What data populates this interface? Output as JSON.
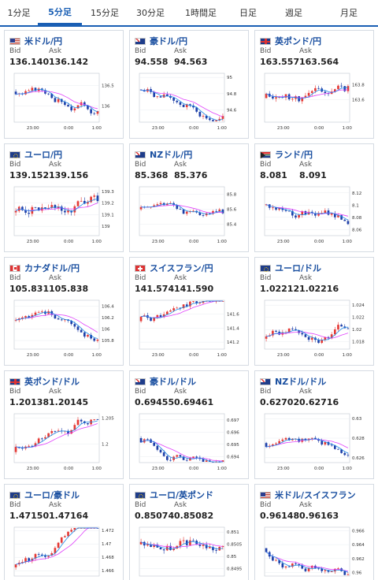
{
  "tabs": [
    "1分足",
    "5分足",
    "15分足",
    "30分足",
    "1時間足",
    "日足",
    "週足",
    "月足"
  ],
  "active_tab": 1,
  "labels": {
    "bid": "Bid",
    "ask": "Ask"
  },
  "colors": {
    "up": "#e53935",
    "down": "#1e3fa8",
    "ma_long": "#e040fb",
    "ma_short": "#1e88e5",
    "accent": "#1a5fb4"
  },
  "cards": [
    {
      "title": "米ドル/円",
      "flag": "us",
      "bid": "136.140",
      "ask": "136.142",
      "chart_data": {
        "type": "candlestick",
        "y_ticks": [
          "136.5",
          "136"
        ],
        "x_ticks": [
          "23:00",
          "0:00",
          "1:00"
        ],
        "ylim": [
          135.6,
          136.8
        ],
        "base": 136.35,
        "trend": -0.25,
        "noise": 0.12,
        "seed": 3
      }
    },
    {
      "title": "豪ドル/円",
      "flag": "au",
      "bid": "94.558",
      "ask": "94.563",
      "chart_data": {
        "type": "candlestick",
        "y_ticks": [
          "95",
          "94.8",
          "94.6"
        ],
        "x_ticks": [
          "23:00",
          "0:00",
          "1:00"
        ],
        "ylim": [
          94.45,
          95.05
        ],
        "base": 94.85,
        "trend": -0.32,
        "noise": 0.07,
        "seed": 7
      }
    },
    {
      "title": "英ポンド/円",
      "flag": "gb",
      "bid": "163.557",
      "ask": "163.564",
      "chart_data": {
        "type": "candlestick",
        "y_ticks": [
          "163.8",
          "163.6"
        ],
        "x_ticks": [
          "23:00",
          "0:00",
          "1:00"
        ],
        "ylim": [
          163.3,
          163.95
        ],
        "base": 163.62,
        "trend": 0.0,
        "noise": 0.09,
        "seed": 11
      }
    },
    {
      "title": "ユーロ/円",
      "flag": "eu",
      "bid": "139.152",
      "ask": "139.156",
      "chart_data": {
        "type": "candlestick",
        "y_ticks": [
          "139.3",
          "139.2",
          "139.1",
          "139"
        ],
        "x_ticks": [
          "23:00",
          "0:00",
          "1:00"
        ],
        "ylim": [
          138.92,
          139.34
        ],
        "base": 139.12,
        "trend": 0.05,
        "noise": 0.07,
        "seed": 19
      }
    },
    {
      "title": "NZドル/円",
      "flag": "nz",
      "bid": "85.368",
      "ask": "85.376",
      "chart_data": {
        "type": "candlestick",
        "y_ticks": [
          "85.8",
          "85.6",
          "85.4"
        ],
        "x_ticks": [
          "23:00",
          "0:00",
          "1:00"
        ],
        "ylim": [
          85.25,
          85.9
        ],
        "base": 85.6,
        "trend": -0.3,
        "noise": 0.06,
        "seed": 23
      }
    },
    {
      "title": "ランド/円",
      "flag": "za",
      "bid": "8.081",
      "ask": "8.091",
      "chart_data": {
        "type": "candlestick",
        "y_ticks": [
          "8.12",
          "8.1",
          "8.08",
          "8.06"
        ],
        "x_ticks": [
          "23:00",
          "0:00",
          "1:00"
        ],
        "ylim": [
          8.05,
          8.13
        ],
        "base": 8.1,
        "trend": -0.015,
        "noise": 0.009,
        "seed": 31
      }
    },
    {
      "title": "カナダドル/円",
      "flag": "ca",
      "bid": "105.831",
      "ask": "105.838",
      "chart_data": {
        "type": "candlestick",
        "y_ticks": [
          "106.4",
          "106.2",
          "106",
          "105.8"
        ],
        "x_ticks": [
          "23:00",
          "0:00",
          "1:00"
        ],
        "ylim": [
          105.65,
          106.5
        ],
        "base": 106.15,
        "trend": -0.35,
        "noise": 0.08,
        "seed": 37
      }
    },
    {
      "title": "スイスフラン/円",
      "flag": "ch",
      "bid": "141.574",
      "ask": "141.590",
      "chart_data": {
        "type": "candlestick",
        "y_ticks": [
          "141.6",
          "141.4",
          "141.2"
        ],
        "x_ticks": [
          "23:00",
          "0:00",
          "1:00"
        ],
        "ylim": [
          141.1,
          141.8
        ],
        "base": 141.5,
        "trend": 0.1,
        "noise": 0.08,
        "seed": 41
      }
    },
    {
      "title": "ユーロ/ドル",
      "flag": "eu",
      "bid": "1.02212",
      "ask": "1.02216",
      "chart_data": {
        "type": "candlestick",
        "y_ticks": [
          "1.024",
          "1.022",
          "1.02",
          "1.018"
        ],
        "x_ticks": [
          "23:00",
          "0:00",
          "1:00"
        ],
        "ylim": [
          1.0168,
          1.0248
        ],
        "base": 1.0185,
        "trend": 0.004,
        "noise": 0.0009,
        "seed": 43
      }
    },
    {
      "title": "英ポンド/ドル",
      "flag": "gb",
      "bid": "1.20138",
      "ask": "1.20145",
      "chart_data": {
        "type": "candlestick",
        "y_ticks": [
          "1.205",
          "1.2"
        ],
        "x_ticks": [
          "23:00",
          "0:00",
          "1:00"
        ],
        "ylim": [
          1.1965,
          1.2058
        ],
        "base": 1.1985,
        "trend": 0.0035,
        "noise": 0.0011,
        "seed": 47
      }
    },
    {
      "title": "豪ドル/ドル",
      "flag": "au",
      "bid": "0.69455",
      "ask": "0.69461",
      "chart_data": {
        "type": "candlestick",
        "y_ticks": [
          "0.697",
          "0.696",
          "0.695",
          "0.694"
        ],
        "x_ticks": [
          "23:00",
          "0:00",
          "1:00"
        ],
        "ylim": [
          0.6935,
          0.6975
        ],
        "base": 0.6955,
        "trend": -0.001,
        "noise": 0.0004,
        "seed": 53
      }
    },
    {
      "title": "NZドル/ドル",
      "flag": "nz",
      "bid": "0.62702",
      "ask": "0.62716",
      "chart_data": {
        "type": "candlestick",
        "y_ticks": [
          "0.63",
          "0.628",
          "0.626"
        ],
        "x_ticks": [
          "23:00",
          "0:00",
          "1:00"
        ],
        "ylim": [
          0.6255,
          0.6305
        ],
        "base": 0.6275,
        "trend": -0.0004,
        "noise": 0.0005,
        "seed": 59
      }
    },
    {
      "title": "ユーロ/豪ドル",
      "flag": "eu",
      "bid": "1.47150",
      "ask": "1.47164",
      "chart_data": {
        "type": "candlestick",
        "y_ticks": [
          "1.472",
          "1.47",
          "1.468",
          "1.466"
        ],
        "x_ticks": [
          "23:00",
          "0:00",
          "1:00"
        ],
        "ylim": [
          1.4652,
          1.4725
        ],
        "base": 1.4665,
        "trend": 0.005,
        "noise": 0.0008,
        "seed": 61
      }
    },
    {
      "title": "ユーロ/英ポンド",
      "flag": "eu",
      "bid": "0.85074",
      "ask": "0.85082",
      "chart_data": {
        "type": "candlestick",
        "y_ticks": [
          "0.851",
          "0.8505",
          "0.85",
          "0.8495"
        ],
        "x_ticks": [
          "23:00",
          "0:00",
          "1:00"
        ],
        "ylim": [
          0.8492,
          0.8512
        ],
        "base": 0.8505,
        "trend": -0.0002,
        "noise": 0.0003,
        "seed": 67
      }
    },
    {
      "title": "米ドル/スイスフラン",
      "flag": "us",
      "bid": "0.96148",
      "ask": "0.96163",
      "chart_data": {
        "type": "candlestick",
        "y_ticks": [
          "0.966",
          "0.964",
          "0.962",
          "0.96"
        ],
        "x_ticks": [
          "23:00",
          "0:00",
          "1:00"
        ],
        "ylim": [
          0.9595,
          0.9665
        ],
        "base": 0.9635,
        "trend": -0.002,
        "noise": 0.0007,
        "seed": 71
      }
    }
  ]
}
